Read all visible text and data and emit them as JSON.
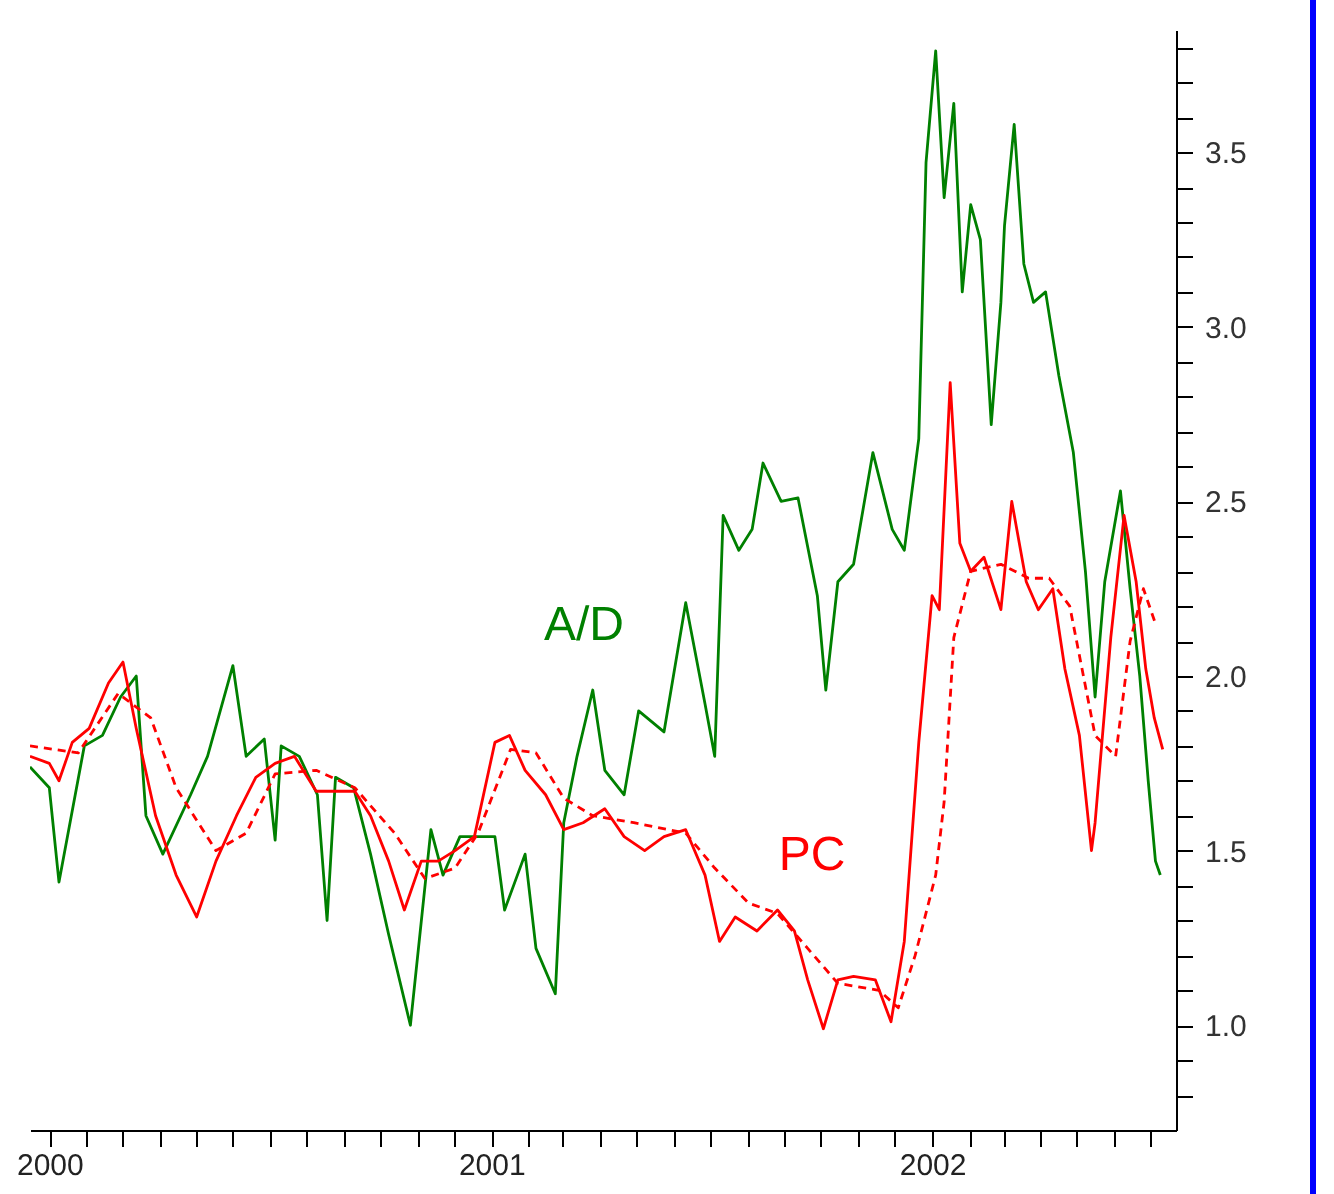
{
  "chart_data": {
    "type": "line",
    "xlim": [
      "1999-12-16",
      "2002-07-22"
    ],
    "ylim": [
      0.7,
      3.85
    ],
    "xticks": [
      {
        "value": "2000-01-01",
        "label": "2000"
      },
      {
        "value": "2000-02-01",
        "label": null
      },
      {
        "value": "2000-03-01",
        "label": null
      },
      {
        "value": "2000-04-01",
        "label": null
      },
      {
        "value": "2000-05-01",
        "label": null
      },
      {
        "value": "2000-06-01",
        "label": null
      },
      {
        "value": "2000-07-01",
        "label": null
      },
      {
        "value": "2000-08-01",
        "label": null
      },
      {
        "value": "2000-09-01",
        "label": null
      },
      {
        "value": "2000-10-01",
        "label": null
      },
      {
        "value": "2000-11-01",
        "label": null
      },
      {
        "value": "2000-12-01",
        "label": null
      },
      {
        "value": "2001-01-01",
        "label": "2001"
      },
      {
        "value": "2001-02-01",
        "label": null
      },
      {
        "value": "2001-03-01",
        "label": null
      },
      {
        "value": "2001-04-01",
        "label": null
      },
      {
        "value": "2001-05-01",
        "label": null
      },
      {
        "value": "2001-06-01",
        "label": null
      },
      {
        "value": "2001-07-01",
        "label": null
      },
      {
        "value": "2001-08-01",
        "label": null
      },
      {
        "value": "2001-09-01",
        "label": null
      },
      {
        "value": "2001-10-01",
        "label": null
      },
      {
        "value": "2001-11-01",
        "label": null
      },
      {
        "value": "2001-12-01",
        "label": null
      },
      {
        "value": "2002-01-01",
        "label": "2002"
      },
      {
        "value": "2002-02-01",
        "label": null
      },
      {
        "value": "2002-03-01",
        "label": null
      },
      {
        "value": "2002-04-01",
        "label": null
      },
      {
        "value": "2002-05-01",
        "label": null
      },
      {
        "value": "2002-06-01",
        "label": null
      },
      {
        "value": "2002-07-01",
        "label": null
      }
    ],
    "yticks": [
      {
        "value": 0.8,
        "label": null
      },
      {
        "value": 0.9,
        "label": null
      },
      {
        "value": 1,
        "label": "1.0"
      },
      {
        "value": 1.1,
        "label": null
      },
      {
        "value": 1.2,
        "label": null
      },
      {
        "value": 1.3,
        "label": null
      },
      {
        "value": 1.4,
        "label": null
      },
      {
        "value": 1.5,
        "label": "1.5"
      },
      {
        "value": 1.6,
        "label": null
      },
      {
        "value": 1.7,
        "label": null
      },
      {
        "value": 1.8,
        "label": null
      },
      {
        "value": 1.9,
        "label": null
      },
      {
        "value": 2,
        "label": "2.0"
      },
      {
        "value": 2.1,
        "label": null
      },
      {
        "value": 2.2,
        "label": null
      },
      {
        "value": 2.3,
        "label": null
      },
      {
        "value": 2.4,
        "label": null
      },
      {
        "value": 2.5,
        "label": "2.5"
      },
      {
        "value": 2.6,
        "label": null
      },
      {
        "value": 2.7,
        "label": null
      },
      {
        "value": 2.8,
        "label": null
      },
      {
        "value": 2.9,
        "label": null
      },
      {
        "value": 3,
        "label": "3.0"
      },
      {
        "value": 3.1,
        "label": null
      },
      {
        "value": 3.2,
        "label": null
      },
      {
        "value": 3.3,
        "label": null
      },
      {
        "value": 3.4,
        "label": null
      },
      {
        "value": 3.5,
        "label": "3.5"
      },
      {
        "value": 3.6,
        "label": null
      },
      {
        "value": 3.7,
        "label": null
      },
      {
        "value": 3.8,
        "label": null
      }
    ],
    "marker": "none",
    "series": [
      {
        "name": "A/D",
        "color": "#008000",
        "line_style": "solid",
        "x": [
          "1999-12-16",
          "2000-01-01",
          "2000-01-09",
          "2000-01-30",
          "2000-02-14",
          "2000-02-29",
          "2000-03-13",
          "2000-03-21",
          "2000-04-04",
          "2000-04-27",
          "2000-05-11",
          "2000-06-01",
          "2000-06-12",
          "2000-06-27",
          "2000-07-06",
          "2000-07-11",
          "2000-07-26",
          "2000-08-10",
          "2000-08-18",
          "2000-08-25",
          "2000-09-09",
          "2000-09-23",
          "2000-10-08",
          "2000-10-26",
          "2000-11-12",
          "2000-11-22",
          "2000-12-06",
          "2001-01-04",
          "2001-01-12",
          "2001-01-29",
          "2001-02-07",
          "2001-02-23",
          "2001-03-02",
          "2001-03-13",
          "2001-03-26",
          "2001-04-05",
          "2001-04-21",
          "2001-05-03",
          "2001-05-24",
          "2001-06-11",
          "2001-06-27",
          "2001-07-05",
          "2001-07-12",
          "2001-07-25",
          "2001-08-05",
          "2001-08-14",
          "2001-08-29",
          "2001-09-12",
          "2001-09-28",
          "2001-10-05",
          "2001-10-15",
          "2001-10-28",
          "2001-11-13",
          "2001-11-29",
          "2001-12-09",
          "2001-12-21",
          "2001-12-27",
          "2002-01-04",
          "2002-01-11",
          "2002-01-19",
          "2002-01-26",
          "2002-02-02",
          "2002-02-10",
          "2002-02-19",
          "2002-02-27",
          "2002-03-02",
          "2002-03-10",
          "2002-03-18",
          "2002-03-26",
          "2002-04-05",
          "2002-04-16",
          "2002-04-28",
          "2002-05-08",
          "2002-05-16",
          "2002-05-24",
          "2002-06-06",
          "2002-06-14",
          "2002-06-22",
          "2002-06-29",
          "2002-07-05",
          "2002-07-09"
        ],
        "values": [
          1.74,
          1.68,
          1.41,
          1.8,
          1.83,
          1.94,
          2.0,
          1.6,
          1.49,
          1.66,
          1.77,
          2.03,
          1.77,
          1.82,
          1.53,
          1.8,
          1.77,
          1.66,
          1.3,
          1.71,
          1.68,
          1.49,
          1.26,
          1.0,
          1.56,
          1.43,
          1.54,
          1.54,
          1.33,
          1.49,
          1.22,
          1.09,
          1.58,
          1.77,
          1.96,
          1.73,
          1.66,
          1.9,
          1.84,
          2.21,
          1.92,
          1.77,
          2.46,
          2.36,
          2.42,
          2.61,
          2.5,
          2.51,
          2.23,
          1.96,
          2.27,
          2.32,
          2.64,
          2.42,
          2.36,
          2.68,
          3.47,
          3.79,
          3.37,
          3.64,
          3.1,
          3.35,
          3.25,
          2.72,
          3.07,
          3.29,
          3.58,
          3.18,
          3.07,
          3.1,
          2.86,
          2.64,
          2.3,
          1.94,
          2.27,
          2.53,
          2.25,
          2.0,
          1.7,
          1.47,
          1.43
        ]
      },
      {
        "name": "PC",
        "color": "#ff0000",
        "line_style": "solid",
        "x": [
          "1999-12-16",
          "2000-01-01",
          "2000-01-09",
          "2000-01-20",
          "2000-02-03",
          "2000-02-19",
          "2000-03-02",
          "2000-03-13",
          "2000-03-29",
          "2000-04-15",
          "2000-05-02",
          "2000-05-18",
          "2000-06-04",
          "2000-06-20",
          "2000-07-06",
          "2000-07-22",
          "2000-08-09",
          "2000-08-25",
          "2000-09-10",
          "2000-09-23",
          "2000-10-08",
          "2000-10-21",
          "2000-11-04",
          "2000-11-18",
          "2000-12-02",
          "2000-12-18",
          "2001-01-04",
          "2001-01-16",
          "2001-01-29",
          "2001-02-15",
          "2001-03-02",
          "2001-03-18",
          "2001-04-05",
          "2001-04-21",
          "2001-05-08",
          "2001-05-24",
          "2001-06-11",
          "2001-06-27",
          "2001-07-09",
          "2001-07-22",
          "2001-08-09",
          "2001-08-26",
          "2001-09-09",
          "2001-09-20",
          "2001-10-03",
          "2001-10-15",
          "2001-10-28",
          "2001-11-15",
          "2001-11-28",
          "2001-12-09",
          "2001-12-21",
          "2002-01-01",
          "2002-01-07",
          "2002-01-16",
          "2002-01-24",
          "2002-02-02",
          "2002-02-13",
          "2002-02-27",
          "2002-03-08",
          "2002-03-20",
          "2002-03-30",
          "2002-04-11",
          "2002-04-21",
          "2002-05-03",
          "2002-05-13",
          "2002-05-16",
          "2002-05-29",
          "2002-06-09",
          "2002-06-19",
          "2002-06-27",
          "2002-07-04",
          "2002-07-11"
        ],
        "values": [
          1.77,
          1.75,
          1.7,
          1.81,
          1.85,
          1.98,
          2.04,
          1.85,
          1.6,
          1.43,
          1.31,
          1.47,
          1.6,
          1.71,
          1.75,
          1.77,
          1.67,
          1.67,
          1.67,
          1.6,
          1.47,
          1.33,
          1.47,
          1.47,
          1.5,
          1.54,
          1.81,
          1.83,
          1.73,
          1.66,
          1.56,
          1.58,
          1.62,
          1.54,
          1.5,
          1.54,
          1.56,
          1.43,
          1.24,
          1.31,
          1.27,
          1.33,
          1.27,
          1.13,
          0.99,
          1.13,
          1.14,
          1.13,
          1.01,
          1.24,
          1.81,
          2.23,
          2.19,
          2.84,
          2.38,
          2.3,
          2.34,
          2.19,
          2.5,
          2.27,
          2.19,
          2.25,
          2.02,
          1.83,
          1.5,
          1.58,
          2.11,
          2.46,
          2.27,
          2.02,
          1.88,
          1.79
        ]
      },
      {
        "color": "#ff0000",
        "line_style": "dashed",
        "x": [
          "1999-12-16",
          "2000-01-25",
          "2000-02-27",
          "2000-03-25",
          "2000-04-15",
          "2000-05-18",
          "2000-06-12",
          "2000-07-06",
          "2000-08-09",
          "2000-09-10",
          "2000-10-13",
          "2000-11-07",
          "2000-12-02",
          "2000-12-21",
          "2001-01-17",
          "2001-02-07",
          "2001-03-02",
          "2001-03-26",
          "2001-04-29",
          "2001-06-11",
          "2001-07-05",
          "2001-08-02",
          "2001-08-26",
          "2001-09-20",
          "2001-10-15",
          "2001-11-18",
          "2001-12-04",
          "2001-12-18",
          "2002-01-04",
          "2002-01-11",
          "2002-01-19",
          "2002-02-02",
          "2002-02-27",
          "2002-03-22",
          "2002-04-08",
          "2002-04-25",
          "2002-05-16",
          "2002-06-02",
          "2002-06-14",
          "2002-06-25",
          "2002-07-05"
        ],
        "values": [
          1.8,
          1.78,
          1.95,
          1.88,
          1.68,
          1.5,
          1.55,
          1.72,
          1.73,
          1.68,
          1.55,
          1.42,
          1.45,
          1.55,
          1.79,
          1.78,
          1.65,
          1.6,
          1.58,
          1.55,
          1.45,
          1.35,
          1.32,
          1.22,
          1.12,
          1.1,
          1.05,
          1.2,
          1.43,
          1.64,
          2.11,
          2.3,
          2.32,
          2.28,
          2.28,
          2.2,
          1.83,
          1.77,
          2.1,
          2.25,
          2.15
        ]
      }
    ]
  }
}
